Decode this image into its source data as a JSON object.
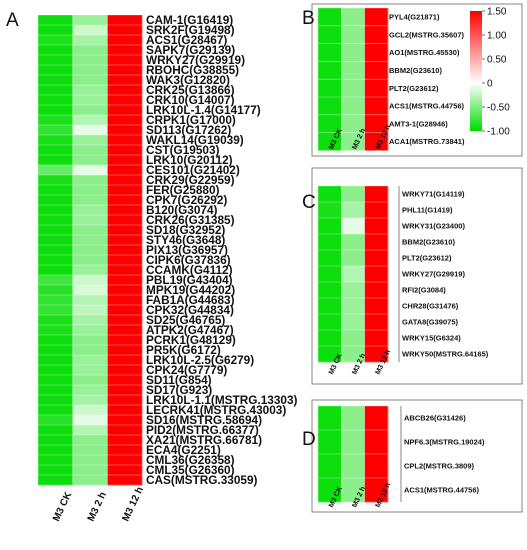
{
  "chart_data": [
    {
      "panel": "A",
      "type": "heatmap",
      "x_labels": [
        "M3 CK",
        "M3 2 h",
        "M3 12 h"
      ],
      "genes": [
        "CAM-1(G16419)",
        "SRK2F(G19498)",
        "ACS1(G28467)",
        "SAPK7(G29139)",
        "WRKY27(G29919)",
        "RBOHC(G38855)",
        "WAK3(G12820)",
        "CRK25(G13866)",
        "CRK10(G14007)",
        "LRK10L-1.4(G14177)",
        "CRPK1(G17000)",
        "SD113(G17262)",
        "WAKL14(G19039)",
        "CST(G19503)",
        "LRK10(G20112)",
        "CES101(G21402)",
        "CRK29(G22959)",
        "FER(G25880)",
        "CPK7(G26292)",
        "B120(G3074)",
        "CRK26(G31385)",
        "SD18(G32952)",
        "STY46(G3648)",
        "PIX13(G36957)",
        "CIPK6(G37836)",
        "CCAMK(G4112)",
        "PBL19(G43404)",
        "MPK19(G44202)",
        "FAB1A(G44683)",
        "CPK32(G44834)",
        "SD25(G46765)",
        "ATPK2(G47467)",
        "PCRK1(G48129)",
        "PR5K(G6172)",
        "LRK10L-2.5(G6279)",
        "CPK24(G7779)",
        "SD11(G854)",
        "SD17(G923)",
        "LRK10L-1.1(MSTRG.13303)",
        "LECRK41(MSTRG.43003)",
        "SD16(MSTRG.58694)",
        "PID2(MSTRG.66377)",
        "XA21(MSTRG.66781)",
        "ECA4(G2251)",
        "CML36(G26358)",
        "CML35(G26360)",
        "CAS(MSTRG.33059)"
      ],
      "values": [
        [
          -0.95,
          -0.4,
          1.5
        ],
        [
          -0.95,
          -0.2,
          1.5
        ],
        [
          -0.9,
          -0.35,
          1.5
        ],
        [
          -0.95,
          -0.45,
          1.5
        ],
        [
          -0.95,
          -0.45,
          1.5
        ],
        [
          -0.95,
          -0.45,
          1.5
        ],
        [
          -0.95,
          -0.45,
          1.5
        ],
        [
          -0.95,
          -0.4,
          1.5
        ],
        [
          -0.95,
          -0.4,
          1.5
        ],
        [
          -0.95,
          -0.45,
          1.5
        ],
        [
          -0.9,
          -0.3,
          1.5
        ],
        [
          -0.8,
          -0.1,
          1.5
        ],
        [
          -0.9,
          -0.4,
          1.5
        ],
        [
          -0.95,
          -0.45,
          1.5
        ],
        [
          -0.95,
          -0.45,
          1.5
        ],
        [
          -0.6,
          -0.1,
          1.5
        ],
        [
          -0.9,
          -0.45,
          1.5
        ],
        [
          -0.95,
          -0.45,
          1.5
        ],
        [
          -0.95,
          -0.45,
          1.5
        ],
        [
          -0.95,
          -0.4,
          1.5
        ],
        [
          -0.95,
          -0.4,
          1.5
        ],
        [
          -0.95,
          -0.45,
          1.5
        ],
        [
          -0.95,
          -0.45,
          1.5
        ],
        [
          -0.95,
          -0.45,
          1.5
        ],
        [
          -0.95,
          -0.45,
          1.5
        ],
        [
          -0.95,
          -0.4,
          1.5
        ],
        [
          -0.75,
          -0.2,
          1.5
        ],
        [
          -0.85,
          -0.15,
          1.5
        ],
        [
          -0.8,
          -0.3,
          1.5
        ],
        [
          -0.8,
          -0.25,
          1.5
        ],
        [
          -0.9,
          -0.35,
          1.5
        ],
        [
          -0.9,
          -0.4,
          1.5
        ],
        [
          -0.95,
          -0.45,
          1.5
        ],
        [
          -0.95,
          -0.45,
          1.5
        ],
        [
          -0.95,
          -0.4,
          1.5
        ],
        [
          -0.95,
          -0.4,
          1.5
        ],
        [
          -0.95,
          -0.45,
          1.5
        ],
        [
          -0.95,
          -0.4,
          1.5
        ],
        [
          -0.95,
          -0.35,
          1.5
        ],
        [
          -0.95,
          -0.2,
          1.5
        ],
        [
          -0.85,
          -0.1,
          1.5
        ],
        [
          -0.95,
          -0.3,
          1.5
        ],
        [
          -0.95,
          -0.45,
          1.5
        ],
        [
          -0.95,
          -0.45,
          1.5
        ],
        [
          -0.95,
          -0.45,
          1.5
        ],
        [
          -0.95,
          -0.45,
          1.5
        ],
        [
          -0.95,
          -0.45,
          1.5
        ]
      ]
    },
    {
      "panel": "B",
      "type": "heatmap",
      "x_labels": [
        "M3 CK",
        "M3 2 h",
        "M3 12 h"
      ],
      "genes": [
        "PYL4(G21871)",
        "GCL2(MSTRG.35607)",
        "AO1(MSTRG.45530)",
        "BBM2(G23610)",
        "PLT2(G23612)",
        "ACS1(MSTRG.44756)",
        "AMT3-1(G28946)",
        "ACA1(MSTRG.73841)"
      ],
      "values": [
        [
          -0.95,
          -0.45,
          1.5
        ],
        [
          -0.95,
          -0.45,
          1.5
        ],
        [
          -0.95,
          -0.45,
          1.5
        ],
        [
          -0.95,
          -0.45,
          1.5
        ],
        [
          -0.95,
          -0.45,
          1.5
        ],
        [
          -0.95,
          -0.45,
          1.5
        ],
        [
          -0.95,
          -0.45,
          1.5
        ],
        [
          -0.95,
          -0.45,
          1.5
        ]
      ],
      "colorbar": {
        "ticks": [
          "1.50",
          "1.00",
          "0.50",
          "0",
          "-0.50",
          "-1.00"
        ],
        "range": [
          -1.0,
          1.5
        ]
      }
    },
    {
      "panel": "C",
      "type": "heatmap",
      "x_labels": [
        "M3 CK",
        "M3 2 h",
        "M3 12 h"
      ],
      "genes": [
        "WRKY71(G14119)",
        "PHL11(G1419)",
        "WRKY31(G23400)",
        "BBM2(G23610)",
        "PLT2(G23612)",
        "WRKY27(G29919)",
        "RFI2(G3084)",
        "CHR28(G31476)",
        "GATA8(G39075)",
        "WRKY15(G6324)",
        "WRKY50(MSTRG.64165)"
      ],
      "values": [
        [
          -0.95,
          -0.45,
          1.5
        ],
        [
          -0.9,
          -0.35,
          1.5
        ],
        [
          -0.95,
          -0.1,
          1.5
        ],
        [
          -0.95,
          -0.45,
          1.5
        ],
        [
          -0.95,
          -0.45,
          1.5
        ],
        [
          -0.95,
          -0.3,
          1.5
        ],
        [
          -0.95,
          -0.4,
          1.5
        ],
        [
          -0.95,
          -0.4,
          1.5
        ],
        [
          -0.95,
          -0.4,
          1.5
        ],
        [
          -0.95,
          -0.45,
          1.5
        ],
        [
          -0.95,
          -0.45,
          1.5
        ]
      ]
    },
    {
      "panel": "D",
      "type": "heatmap",
      "x_labels": [
        "M3 CK",
        "M3 2 h",
        "M3 12 h"
      ],
      "genes": [
        "ABCB26(G31426)",
        "NPF6.3(MSTRG.19024)",
        "CPL2(MSTRG.3809)",
        "ACS1(MSTRG.44756)"
      ],
      "values": [
        [
          -0.95,
          -0.45,
          1.5
        ],
        [
          -0.95,
          -0.45,
          1.5
        ],
        [
          -0.95,
          -0.45,
          1.5
        ],
        [
          -0.95,
          -0.45,
          1.5
        ]
      ]
    }
  ],
  "colors": {
    "low": "#00dc00",
    "mid": "#ffffff",
    "high": "#ff0000"
  }
}
